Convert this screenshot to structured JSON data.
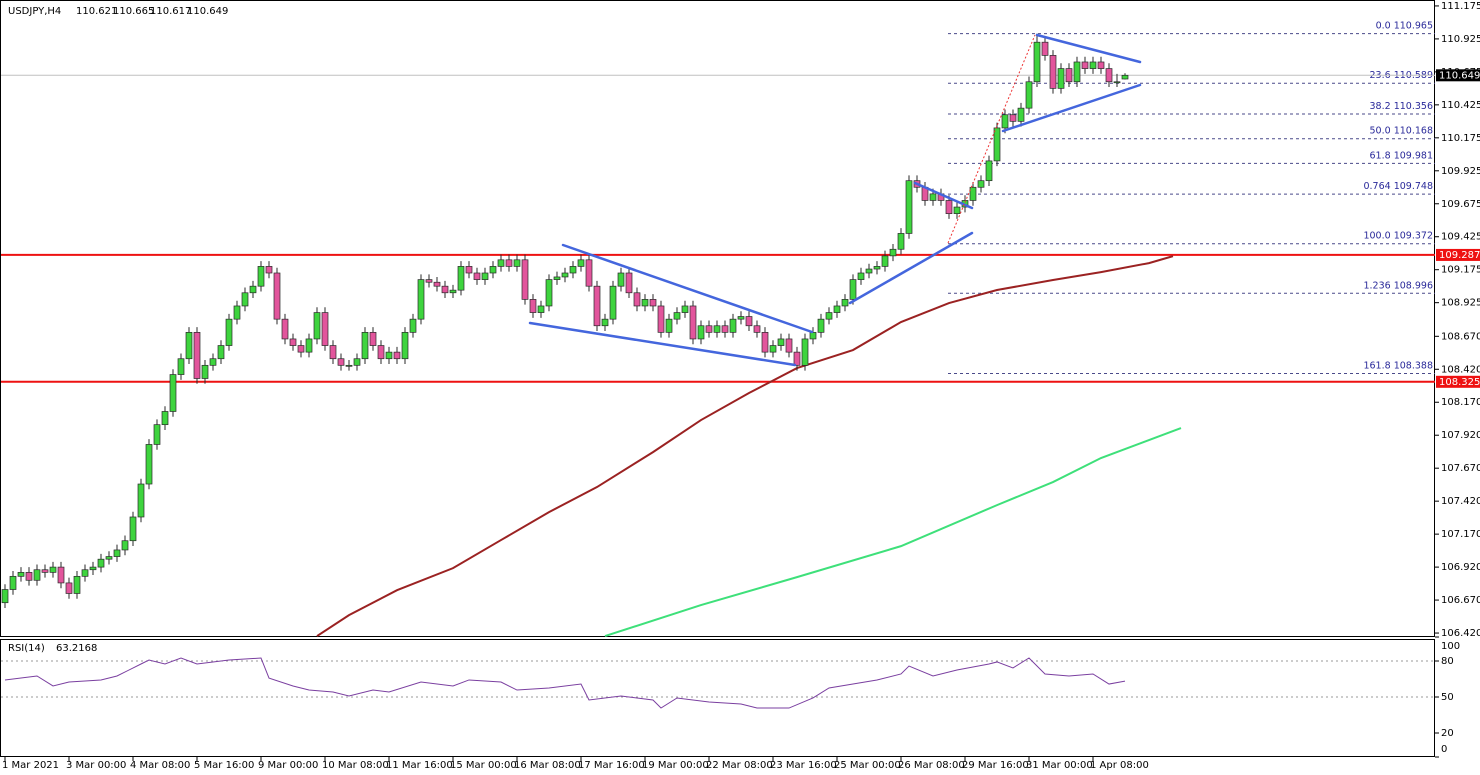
{
  "chart_data": {
    "type": "candlestick",
    "symbol": "USDJPY,H4",
    "categories": [
      "1 Mar 2021",
      null,
      null,
      null,
      null,
      null,
      null,
      null,
      "3 Mar 00:00",
      null,
      null,
      null,
      null,
      null,
      null,
      null,
      "4 Mar 08:00",
      null,
      null,
      null,
      null,
      null,
      null,
      null,
      "5 Mar 16:00",
      null,
      null,
      null,
      null,
      null,
      null,
      null,
      "9 Mar 00:00",
      null,
      null,
      null,
      null,
      null,
      null,
      null,
      "10 Mar 08:00",
      null,
      null,
      null,
      null,
      null,
      null,
      null,
      "11 Mar 16:00",
      null,
      null,
      null,
      null,
      null,
      null,
      null,
      "15 Mar 00:00",
      null,
      null,
      null,
      null,
      null,
      null,
      null,
      "16 Mar 08:00",
      null,
      null,
      null,
      null,
      null,
      null,
      null,
      "17 Mar 16:00",
      null,
      null,
      null,
      null,
      null,
      null,
      null,
      "19 Mar 00:00",
      null,
      null,
      null,
      null,
      null,
      null,
      null,
      "22 Mar 08:00",
      null,
      null,
      null,
      null,
      null,
      null,
      null,
      "23 Mar 16:00",
      null,
      null,
      null,
      null,
      null,
      null,
      null,
      "25 Mar 00:00",
      null,
      null,
      null,
      null,
      null,
      null,
      null,
      "26 Mar 08:00",
      null,
      null,
      null,
      null,
      null,
      null,
      null,
      "29 Mar 16:00",
      null,
      null,
      null,
      null,
      null,
      null,
      null,
      "31 Mar 00:00",
      null,
      null,
      null,
      null,
      null,
      null,
      null,
      "1 Apr 08:00",
      null,
      null,
      null,
      null
    ],
    "open": [
      106.65,
      106.75,
      106.85,
      106.88,
      106.82,
      106.9,
      106.88,
      106.92,
      106.8,
      106.72,
      106.85,
      106.9,
      106.92,
      106.98,
      107.0,
      107.05,
      107.12,
      107.3,
      107.55,
      107.85,
      108.0,
      108.1,
      108.38,
      108.5,
      108.7,
      108.35,
      108.45,
      108.5,
      108.6,
      108.8,
      108.9,
      109.0,
      109.05,
      109.2,
      109.15,
      108.8,
      108.65,
      108.6,
      108.55,
      108.65,
      108.85,
      108.6,
      108.5,
      108.45,
      108.45,
      108.5,
      108.7,
      108.6,
      108.5,
      108.55,
      108.5,
      108.7,
      108.8,
      109.1,
      109.08,
      109.05,
      109.0,
      109.02,
      109.2,
      109.15,
      109.1,
      109.15,
      109.2,
      109.25,
      109.2,
      109.25,
      108.95,
      108.85,
      108.9,
      109.1,
      109.12,
      109.15,
      109.2,
      109.25,
      109.05,
      108.75,
      108.8,
      109.05,
      109.15,
      109.0,
      108.9,
      108.95,
      108.9,
      108.7,
      108.8,
      108.85,
      108.9,
      108.65,
      108.75,
      108.7,
      108.75,
      108.7,
      108.8,
      108.82,
      108.75,
      108.7,
      108.55,
      108.6,
      108.65,
      108.55,
      108.45,
      108.65,
      108.7,
      108.8,
      108.85,
      108.9,
      108.95,
      109.1,
      109.15,
      109.18,
      109.2,
      109.28,
      109.33,
      109.45,
      109.85,
      109.8,
      109.7,
      109.75,
      109.7,
      109.6,
      109.65,
      109.7,
      109.8,
      109.85,
      110.0,
      110.25,
      110.35,
      110.3,
      110.4,
      110.6,
      110.9,
      110.8,
      110.55,
      110.7,
      110.6,
      110.75,
      110.7,
      110.75,
      110.7,
      110.6,
      110.621
    ],
    "high": [
      106.79,
      106.89,
      106.92,
      106.92,
      106.94,
      106.94,
      106.96,
      106.96,
      106.84,
      106.89,
      106.94,
      106.96,
      107.02,
      107.04,
      107.09,
      107.16,
      107.34,
      107.59,
      107.89,
      108.04,
      108.14,
      108.42,
      108.54,
      108.74,
      108.74,
      108.49,
      108.54,
      108.64,
      108.84,
      108.94,
      109.04,
      109.09,
      109.24,
      109.24,
      109.19,
      108.84,
      108.69,
      108.64,
      108.69,
      108.89,
      108.89,
      108.64,
      108.54,
      108.49,
      108.54,
      108.74,
      108.74,
      108.64,
      108.59,
      108.59,
      108.74,
      108.84,
      109.14,
      109.14,
      109.12,
      109.09,
      109.06,
      109.24,
      109.24,
      109.19,
      109.19,
      109.24,
      109.29,
      109.29,
      109.29,
      109.29,
      108.99,
      108.94,
      109.14,
      109.16,
      109.19,
      109.24,
      109.29,
      109.29,
      109.09,
      108.84,
      109.09,
      109.19,
      109.19,
      109.04,
      108.99,
      108.99,
      108.94,
      108.84,
      108.89,
      108.94,
      108.94,
      108.79,
      108.79,
      108.79,
      108.79,
      108.84,
      108.86,
      108.86,
      108.79,
      108.74,
      108.64,
      108.69,
      108.69,
      108.59,
      108.69,
      108.74,
      108.84,
      108.89,
      108.94,
      108.99,
      109.14,
      109.19,
      109.22,
      109.24,
      109.32,
      109.37,
      109.49,
      109.89,
      109.89,
      109.84,
      109.79,
      109.79,
      109.74,
      109.69,
      109.74,
      109.84,
      109.89,
      110.04,
      110.29,
      110.39,
      110.39,
      110.44,
      110.64,
      110.965,
      110.94,
      110.84,
      110.74,
      110.74,
      110.79,
      110.79,
      110.79,
      110.79,
      110.74,
      110.66,
      110.665
    ],
    "low": [
      106.61,
      106.71,
      106.81,
      106.78,
      106.78,
      106.84,
      106.84,
      106.76,
      106.68,
      106.68,
      106.81,
      106.86,
      106.88,
      106.94,
      106.96,
      107.01,
      107.08,
      107.26,
      107.51,
      107.81,
      107.96,
      108.06,
      108.34,
      108.46,
      108.31,
      108.31,
      108.41,
      108.46,
      108.56,
      108.76,
      108.86,
      108.96,
      109.01,
      109.11,
      108.76,
      108.61,
      108.56,
      108.51,
      108.51,
      108.61,
      108.56,
      108.46,
      108.41,
      108.41,
      108.41,
      108.46,
      108.56,
      108.46,
      108.46,
      108.46,
      108.46,
      108.66,
      108.76,
      109.04,
      109.01,
      108.96,
      108.96,
      108.98,
      109.11,
      109.06,
      109.06,
      109.11,
      109.16,
      109.16,
      109.16,
      108.91,
      108.81,
      108.81,
      108.86,
      109.06,
      109.08,
      109.11,
      109.16,
      109.01,
      108.71,
      108.71,
      108.76,
      109.01,
      108.96,
      108.86,
      108.86,
      108.86,
      108.66,
      108.66,
      108.76,
      108.81,
      108.61,
      108.61,
      108.66,
      108.66,
      108.66,
      108.66,
      108.76,
      108.71,
      108.66,
      108.51,
      108.51,
      108.56,
      108.51,
      108.41,
      108.41,
      108.61,
      108.66,
      108.76,
      108.81,
      108.86,
      108.91,
      109.06,
      109.11,
      109.14,
      109.16,
      109.24,
      109.29,
      109.41,
      109.76,
      109.66,
      109.66,
      109.66,
      109.56,
      109.56,
      109.61,
      109.66,
      109.76,
      109.81,
      109.96,
      110.21,
      110.26,
      110.26,
      110.36,
      110.56,
      110.76,
      110.51,
      110.51,
      110.56,
      110.56,
      110.66,
      110.66,
      110.66,
      110.56,
      110.56,
      110.617
    ],
    "close": [
      106.75,
      106.85,
      106.88,
      106.82,
      106.9,
      106.88,
      106.92,
      106.8,
      106.72,
      106.85,
      106.9,
      106.92,
      106.98,
      107.0,
      107.05,
      107.12,
      107.3,
      107.55,
      107.85,
      108.0,
      108.1,
      108.38,
      108.5,
      108.7,
      108.35,
      108.45,
      108.5,
      108.6,
      108.8,
      108.9,
      109.0,
      109.05,
      109.2,
      109.15,
      108.8,
      108.65,
      108.6,
      108.55,
      108.65,
      108.85,
      108.6,
      108.5,
      108.45,
      108.45,
      108.5,
      108.7,
      108.6,
      108.5,
      108.55,
      108.5,
      108.7,
      108.8,
      109.1,
      109.08,
      109.05,
      109.0,
      109.02,
      109.2,
      109.15,
      109.1,
      109.15,
      109.2,
      109.25,
      109.2,
      109.25,
      108.95,
      108.85,
      108.9,
      109.1,
      109.12,
      109.15,
      109.2,
      109.25,
      109.05,
      108.75,
      108.8,
      109.05,
      109.15,
      109.0,
      108.9,
      108.95,
      108.9,
      108.7,
      108.8,
      108.85,
      108.9,
      108.65,
      108.75,
      108.7,
      108.75,
      108.7,
      108.8,
      108.82,
      108.75,
      108.7,
      108.55,
      108.6,
      108.65,
      108.55,
      108.45,
      108.65,
      108.7,
      108.8,
      108.85,
      108.9,
      108.95,
      109.1,
      109.15,
      109.18,
      109.2,
      109.28,
      109.33,
      109.45,
      109.85,
      109.8,
      109.7,
      109.75,
      109.7,
      109.6,
      109.65,
      109.7,
      109.8,
      109.85,
      110.0,
      110.25,
      110.35,
      110.3,
      110.4,
      110.6,
      110.9,
      110.8,
      110.55,
      110.7,
      110.6,
      110.75,
      110.7,
      110.75,
      110.7,
      110.6,
      110.6,
      110.649
    ],
    "up_color": "#3ed43e",
    "down_color": "#e2559c",
    "wick_color": "#2a2a2a",
    "series": [
      {
        "color": "#9b2222",
        "x": [
          39,
          43,
          49,
          56,
          62,
          68,
          74,
          81,
          87,
          93,
          99,
          106,
          112,
          118,
          124,
          131,
          137,
          143,
          146
        ],
        "values": [
          106.397,
          106.556,
          106.745,
          106.912,
          107.125,
          107.337,
          107.527,
          107.792,
          108.035,
          108.24,
          108.429,
          108.566,
          108.778,
          108.922,
          109.021,
          109.097,
          109.157,
          109.225,
          109.278
        ]
      },
      {
        "color": "#3ee07a",
        "x": [
          75,
          87,
          99,
          112,
          124,
          131,
          137,
          147
        ],
        "values": [
          106.397,
          106.632,
          106.844,
          107.079,
          107.39,
          107.565,
          107.747,
          107.974
        ]
      }
    ],
    "levels": [
      109.287,
      108.325
    ],
    "level_color": "#ee1111",
    "fib_levels": [
      {
        "label": "0.0",
        "value": 110.965
      },
      {
        "label": "23.6",
        "value": 110.589
      },
      {
        "label": "38.2",
        "value": 110.356
      },
      {
        "label": "50.0",
        "value": 110.168
      },
      {
        "label": "61.8",
        "value": 109.981
      },
      {
        "label": "0.764",
        "value": 109.748
      },
      {
        "label": "100.0",
        "value": 109.372
      },
      {
        "label": "1.236",
        "value": 108.996
      },
      {
        "label": "161.8",
        "value": 108.388
      }
    ],
    "ylim": [
      106.39,
      111.22
    ],
    "yticks": [
      111.175,
      110.925,
      110.675,
      110.425,
      110.175,
      109.925,
      109.675,
      109.425,
      109.175,
      108.925,
      {
        "value": 108.67,
        "label": "108.670"
      },
      {
        "value": 108.42,
        "label": "108.420"
      },
      {
        "value": 108.17,
        "label": "108.170"
      },
      {
        "value": 107.92,
        "label": "107.920"
      },
      {
        "value": 107.67,
        "label": "107.670"
      },
      {
        "value": 107.42,
        "label": "107.420"
      },
      {
        "value": 107.17,
        "label": "107.170"
      },
      {
        "value": 106.92,
        "label": "106.920"
      },
      {
        "value": 106.67,
        "label": "106.670"
      },
      {
        "value": 106.42,
        "label": "106.420"
      }
    ],
    "rsi": {
      "name": "RSI(14)",
      "color": "#7a3fa0",
      "x": [
        0,
        2,
        4,
        6,
        8,
        12,
        14,
        17,
        18,
        20,
        22,
        24,
        26,
        28,
        32,
        33,
        36,
        38,
        41,
        43,
        46,
        48,
        52,
        56,
        58,
        62,
        64,
        68,
        72,
        73,
        77,
        81,
        82,
        84,
        88,
        92,
        94,
        98,
        101,
        103,
        106,
        109,
        112,
        113,
        116,
        119,
        123,
        124,
        126,
        128,
        130,
        133,
        136,
        138,
        140
      ],
      "values": [
        64.2,
        65.8,
        67.5,
        59.2,
        62.5,
        64.2,
        67.5,
        77.5,
        80.8,
        77.5,
        82.5,
        77.5,
        79.2,
        80.8,
        82.5,
        65.8,
        59.2,
        55.8,
        54.2,
        50.8,
        55.8,
        54.2,
        62.5,
        59.2,
        64.2,
        62.5,
        55.8,
        57.5,
        60.8,
        47.5,
        50.8,
        47.5,
        40.8,
        49.2,
        45.8,
        44.2,
        40.8,
        40.8,
        49.2,
        57.5,
        60.8,
        64.2,
        69.2,
        75.8,
        67.5,
        72.5,
        77.5,
        79.2,
        74.2,
        82.5,
        69.2,
        67.5,
        69.2,
        60.8,
        63.2168
      ],
      "ylim": [
        0,
        100
      ],
      "yticks": [
        100,
        80,
        50,
        20,
        0
      ],
      "levels": [
        80,
        50
      ]
    }
  }
}
